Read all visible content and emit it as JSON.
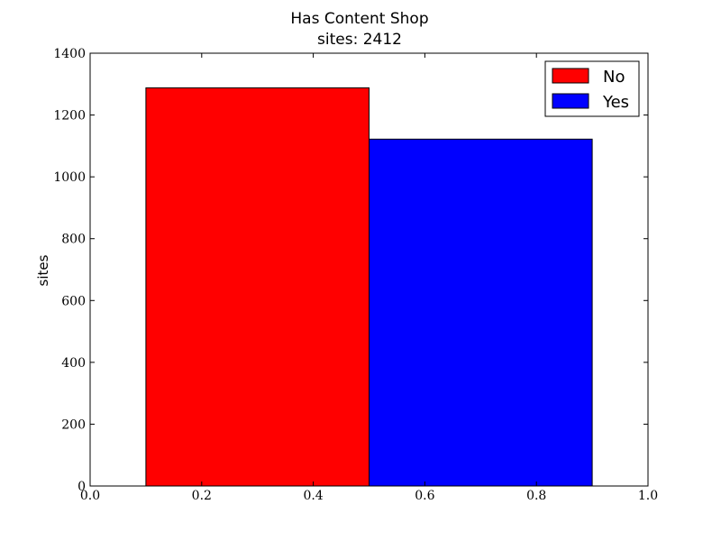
{
  "chart_data": {
    "type": "bar",
    "title": "Has Content Shop",
    "subtitle": "sites: 2412",
    "xlabel": "",
    "ylabel": "sites",
    "xlim": [
      0.0,
      1.0
    ],
    "ylim": [
      0,
      1400
    ],
    "x_ticks": [
      "0.0",
      "0.2",
      "0.4",
      "0.6",
      "0.8",
      "1.0"
    ],
    "y_ticks": [
      "0",
      "200",
      "400",
      "600",
      "800",
      "1000",
      "1200",
      "1400"
    ],
    "grid": false,
    "legend_position": "top-right",
    "series": [
      {
        "name": "No",
        "x_start": 0.1,
        "x_end": 0.5,
        "value": 1288,
        "color": "#ff0000"
      },
      {
        "name": "Yes",
        "x_start": 0.5,
        "x_end": 0.9,
        "value": 1122,
        "color": "#0000ff"
      }
    ]
  }
}
